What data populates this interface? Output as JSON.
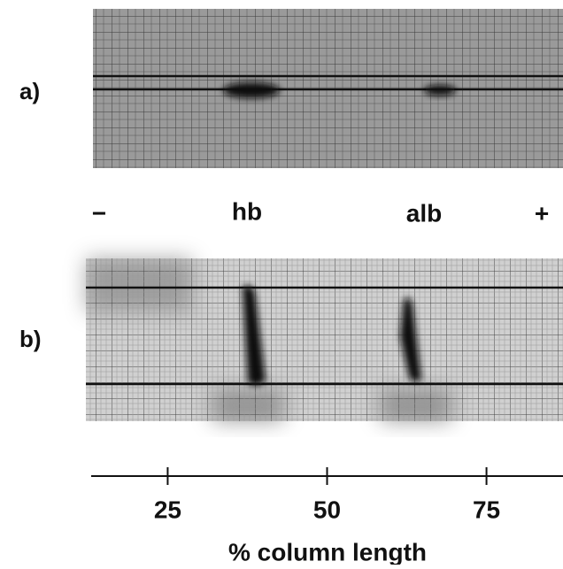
{
  "panels": [
    {
      "label": "a)"
    },
    {
      "label": "b)"
    }
  ],
  "markers": {
    "cathode": "−",
    "bands": [
      "hb",
      "alb"
    ],
    "anode": "+"
  },
  "axis": {
    "label": "% column length",
    "xlim": [
      13,
      87
    ],
    "xticks": [
      25,
      50,
      75
    ]
  }
}
